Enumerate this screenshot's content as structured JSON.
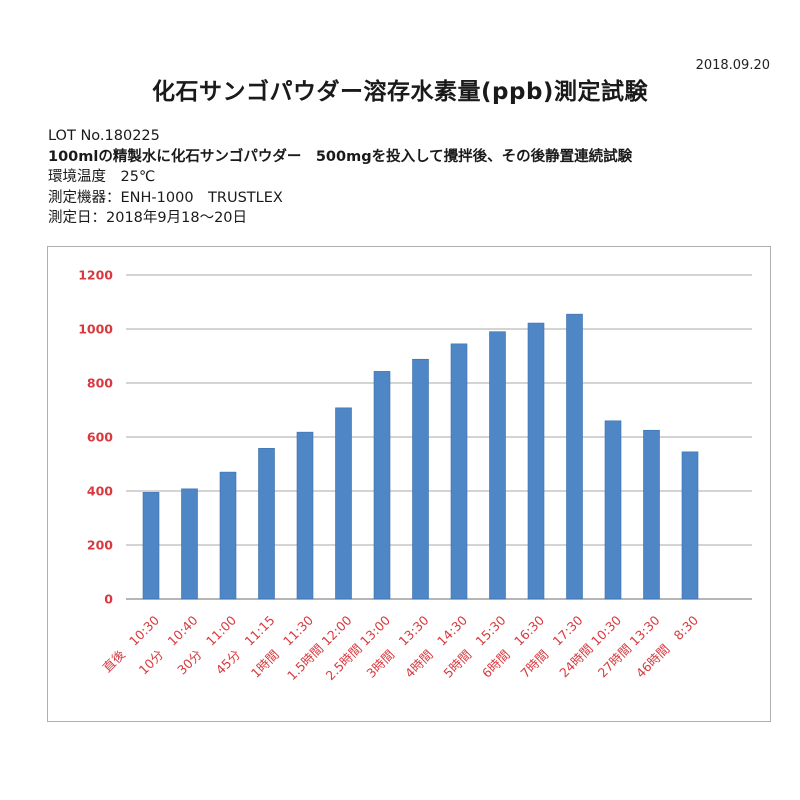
{
  "header": {
    "date": "2018.09.20",
    "title": "化石サンゴパウダー溶存水素量(ppb)測定試験"
  },
  "info": {
    "lot": "LOT No.180225",
    "method": "100mlの精製水に化石サンゴパウダー　500mgを投入して攪拌後、その後静置連続試験",
    "temperature": "環境温度　25℃",
    "instrument": "測定機器：ENH-1000　TRUSTLEX",
    "measure_date": "測定日：2018年9月18～20日"
  },
  "chart_data": {
    "type": "bar",
    "title": "",
    "xlabel": "",
    "ylabel": "",
    "ylim": [
      0,
      1200
    ],
    "yticks": [
      0,
      200,
      400,
      600,
      800,
      1000,
      1200
    ],
    "grid": true,
    "categories": [
      "直後　10:30",
      "10分　10:40",
      "30分　11:00",
      "45分　11:15",
      "1時間　11:30",
      "1.5時間 12:00",
      "2.5時間 13:00",
      "3時間　13:30",
      "4時間　14:30",
      "5時間　15:30",
      "6時間　16:30",
      "7時間　17:30",
      "24時間 10:30",
      "27時間 13:30",
      "46時間　8:30"
    ],
    "values": [
      395,
      408,
      470,
      558,
      618,
      708,
      843,
      888,
      945,
      990,
      1022,
      1055,
      660,
      625,
      545
    ],
    "colors": {
      "bar": "#4f86c6",
      "bar_edge": "#3a70ad",
      "tick_label": "#d9393e",
      "grid": "#a8a8a8"
    }
  }
}
